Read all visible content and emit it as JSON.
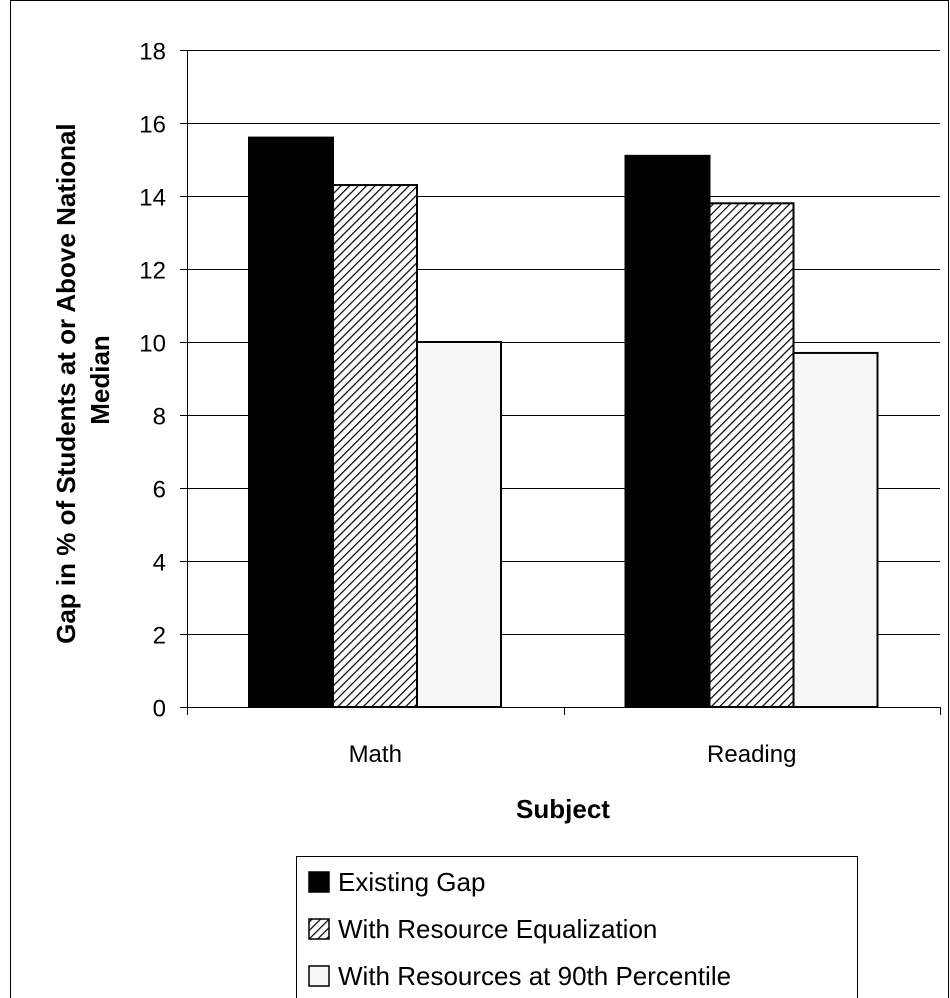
{
  "chart_data": {
    "type": "bar",
    "categories": [
      "Math",
      "Reading"
    ],
    "series": [
      {
        "name": "Existing Gap",
        "values": [
          15.6,
          15.1
        ],
        "fill": "#000000",
        "pattern": "solid"
      },
      {
        "name": "With Resource Equalization",
        "values": [
          14.3,
          13.8
        ],
        "fill": "#ffffff",
        "pattern": "diagonal-hatch"
      },
      {
        "name": "With Resources at 90th Percentile",
        "values": [
          10.0,
          9.7
        ],
        "fill": "#f7f7f7",
        "pattern": "solid"
      }
    ],
    "title": "",
    "xlabel": "Subject",
    "ylabel": "Gap in % of Students at or Above National Median",
    "ylabel_lines": [
      "Gap in % of Students at or Above National",
      "Median"
    ],
    "ylim": [
      0,
      18
    ],
    "yticks": [
      0,
      2,
      4,
      6,
      8,
      10,
      12,
      14,
      16,
      18
    ],
    "grid": true,
    "legend_position": "bottom"
  }
}
